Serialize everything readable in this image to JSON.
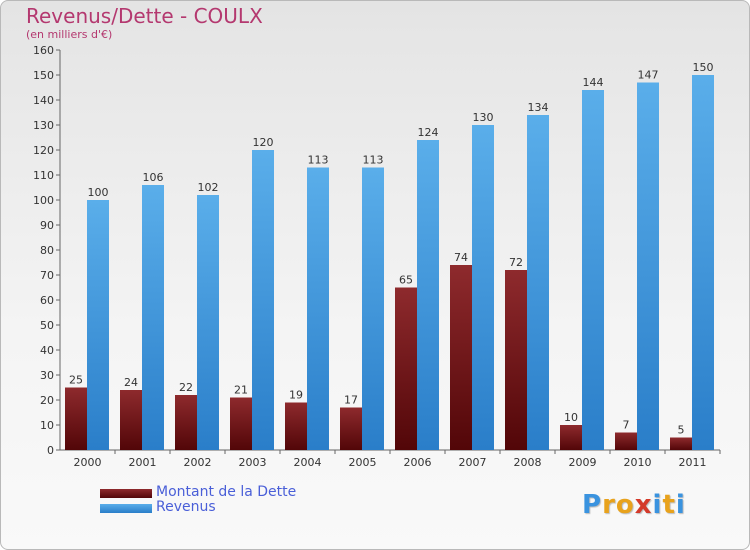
{
  "header": {
    "title": "Revenus/Dette - COULX",
    "subtitle": "(en milliers d'€)"
  },
  "colors": {
    "debt": "#6e1416",
    "revenue": "#3a93df",
    "title": "#b4386f",
    "legend_text": "#4a5fd8"
  },
  "logo": {
    "text": "Proxiti"
  },
  "chart_data": {
    "type": "bar",
    "title": "Revenus/Dette - COULX",
    "subtitle": "(en milliers d'€)",
    "categories": [
      "2000",
      "2001",
      "2002",
      "2003",
      "2004",
      "2005",
      "2006",
      "2007",
      "2008",
      "2009",
      "2010",
      "2011"
    ],
    "series": [
      {
        "name": "Montant de la Dette",
        "values": [
          25,
          24,
          22,
          21,
          19,
          17,
          65,
          74,
          72,
          10,
          7,
          5
        ]
      },
      {
        "name": "Revenus",
        "values": [
          100,
          106,
          102,
          120,
          113,
          113,
          124,
          130,
          134,
          144,
          147,
          150
        ]
      }
    ],
    "ylim": [
      0,
      160
    ],
    "ytick_step": 10,
    "grid": false,
    "legend_position": "bottom-left",
    "data_labels": true
  }
}
